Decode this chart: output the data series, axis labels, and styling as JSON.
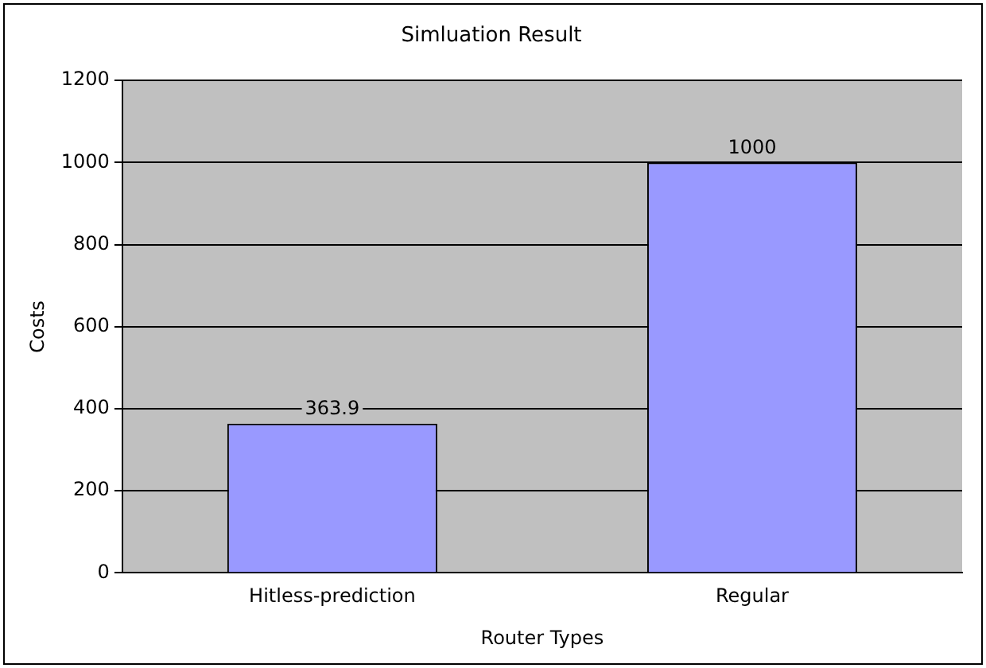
{
  "chart_data": {
    "type": "bar",
    "title": "Simluation Result",
    "xlabel": "Router Types",
    "ylabel": "Costs",
    "categories": [
      "Hitless-prediction",
      "Regular"
    ],
    "values": [
      363.9,
      1000
    ],
    "color": "#9999ff",
    "ylim": [
      0,
      1200
    ],
    "yticks": [
      0,
      200,
      400,
      600,
      800,
      1000,
      1200
    ],
    "grid": "y",
    "legend": false,
    "data_labels": true
  }
}
